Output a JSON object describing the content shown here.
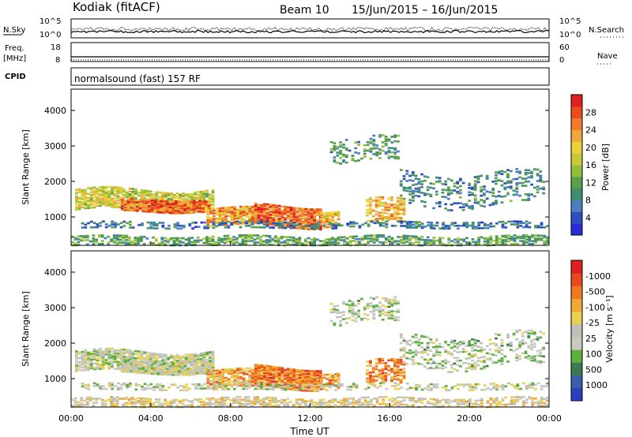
{
  "header": {
    "station": "Kodiak (fitACF)",
    "beam": "Beam 10",
    "date_range": "15/Jun/2015 – 16/Jun/2015"
  },
  "chart_data": [
    {
      "type": "line",
      "name": "noise-panel",
      "left_label": "N.Sky",
      "right_label": "N.Search",
      "left_ticks": [
        "10^5",
        "10^0"
      ],
      "right_ticks": [
        "10^5",
        "10^0"
      ],
      "scale": "log",
      "ylim": [
        1,
        100000
      ]
    },
    {
      "type": "line",
      "name": "frequency-panel",
      "left_label_lines": [
        "Freq.",
        "[MHz]"
      ],
      "right_label": "Nave",
      "left_ticks": [
        "18",
        "8"
      ],
      "right_ticks": [
        "60",
        "0"
      ],
      "ylim_left": [
        8,
        18
      ],
      "ylim_right": [
        0,
        60
      ]
    },
    {
      "type": "table",
      "name": "cpid-panel",
      "label": "CPID",
      "program": "normalsound (fast) 157 RF"
    },
    {
      "type": "heatmap",
      "name": "power-panel",
      "ylabel": "Slant Range [km]",
      "ylim": [
        200,
        4600
      ],
      "yticks": [
        "1000",
        "2000",
        "3000",
        "4000"
      ],
      "xlim": [
        "00:00",
        "00:00"
      ],
      "colorbar": {
        "label": "Power [dB]",
        "ticks": [
          "4",
          "8",
          "12",
          "16",
          "20",
          "24",
          "28"
        ],
        "colors": [
          "#2b2bd8",
          "#2f4fc0",
          "#4a7fbf",
          "#3f8f6f",
          "#5aa04a",
          "#8fbf3a",
          "#c8c83a",
          "#ead23a",
          "#f0a83a",
          "#f07a2a",
          "#ee4a20",
          "#e02020"
        ]
      }
    },
    {
      "type": "heatmap",
      "name": "velocity-panel",
      "ylabel": "Slant Range [km]",
      "ylim": [
        200,
        4600
      ],
      "yticks": [
        "1000",
        "2000",
        "3000",
        "4000"
      ],
      "xlabel": "Time UT",
      "xticks": [
        "00:00",
        "04:00",
        "08:00",
        "12:00",
        "16:00",
        "20:00",
        "00:00"
      ],
      "colorbar": {
        "label": "Velocity [m s⁻¹]",
        "ticks": [
          "1000",
          "500",
          "100",
          "25",
          "-25",
          "-100",
          "-500",
          "-1000"
        ],
        "colors": [
          "#2b3fbf",
          "#3a5fa8",
          "#3c7a55",
          "#5cb040",
          "#c8c8c0",
          "#c0c0b8",
          "#e8d050",
          "#f0a830",
          "#f07820",
          "#e84a20",
          "#e02020"
        ]
      }
    }
  ]
}
